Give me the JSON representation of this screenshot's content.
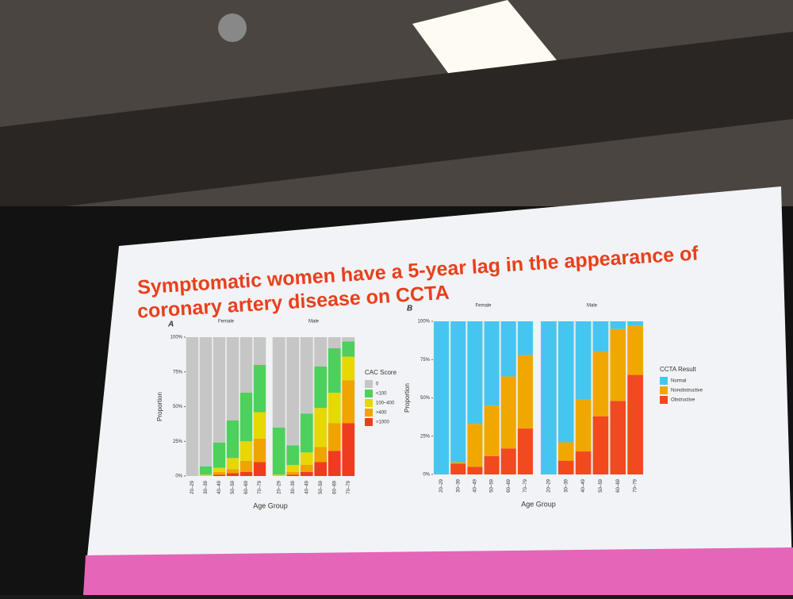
{
  "slide_title": "Symptomatic women have a 5-year lag in the appearance of coronary artery disease on CCTA",
  "chart_data": [
    {
      "type": "stacked_bar",
      "panel": "A",
      "ylabel": "Proportion",
      "xlabel": "Age Group",
      "legend_title": "CAC Score",
      "categories": [
        "20–29",
        "30–39",
        "40–49",
        "50–59",
        "60–69",
        "70–79"
      ],
      "ylim": [
        0,
        100
      ],
      "yticks": [
        {
          "value": 0,
          "label": "0%"
        },
        {
          "value": 25,
          "label": "25%"
        },
        {
          "value": 50,
          "label": "50%"
        },
        {
          "value": 75,
          "label": "75%"
        },
        {
          "value": 100,
          "label": "100%"
        }
      ],
      "series": [
        {
          "name": "0",
          "color": "#c6c6c6"
        },
        {
          "name": "<100",
          "color": "#4dd05c"
        },
        {
          "name": "100–400",
          "color": "#e6d800"
        },
        {
          "name": ">400",
          "color": "#f0a400"
        },
        {
          "name": ">1000",
          "color": "#f03c1e"
        }
      ],
      "facets": [
        {
          "name": "Female",
          "values": [
            [
              100,
              93,
              76,
              60,
              40,
              20
            ],
            [
              0,
              6,
              18,
              27,
              35,
              34
            ],
            [
              0,
              1,
              3,
              8,
              14,
              19
            ],
            [
              0,
              0,
              2,
              3,
              8,
              17
            ],
            [
              0,
              0,
              1,
              2,
              3,
              10
            ]
          ]
        },
        {
          "name": "Male",
          "values": [
            [
              65,
              78,
              55,
              21,
              8,
              3
            ],
            [
              34,
              14,
              28,
              30,
              32,
              11
            ],
            [
              1,
              5,
              9,
              28,
              22,
              17
            ],
            [
              0,
              2,
              5,
              11,
              20,
              31
            ],
            [
              0,
              1,
              3,
              10,
              18,
              38
            ]
          ]
        }
      ]
    },
    {
      "type": "stacked_bar",
      "panel": "B",
      "ylabel": "Proportion",
      "xlabel": "Age Group",
      "legend_title": "CCTA Result",
      "categories": [
        "20–29",
        "30–39",
        "40–49",
        "50–59",
        "60–69",
        "70–79"
      ],
      "ylim": [
        0,
        100
      ],
      "yticks": [
        {
          "value": 0,
          "label": "0%"
        },
        {
          "value": 25,
          "label": "25%"
        },
        {
          "value": 50,
          "label": "50%"
        },
        {
          "value": 75,
          "label": "75%"
        },
        {
          "value": 100,
          "label": "100%"
        }
      ],
      "series": [
        {
          "name": "Normal",
          "color": "#45c6f0"
        },
        {
          "name": "Nonobstructive",
          "color": "#f0a800"
        },
        {
          "name": "Obstructive",
          "color": "#f04a1e"
        }
      ],
      "facets": [
        {
          "name": "Female",
          "values": [
            [
              100,
              92,
              67,
              55,
              36,
              22
            ],
            [
              0,
              1,
              28,
              33,
              47,
              48
            ],
            [
              0,
              7,
              5,
              12,
              17,
              30
            ]
          ]
        },
        {
          "name": "Male",
          "values": [
            [
              100,
              79,
              51,
              20,
              5,
              3
            ],
            [
              0,
              12,
              34,
              42,
              47,
              32
            ],
            [
              0,
              9,
              15,
              38,
              48,
              65
            ]
          ]
        }
      ]
    }
  ]
}
